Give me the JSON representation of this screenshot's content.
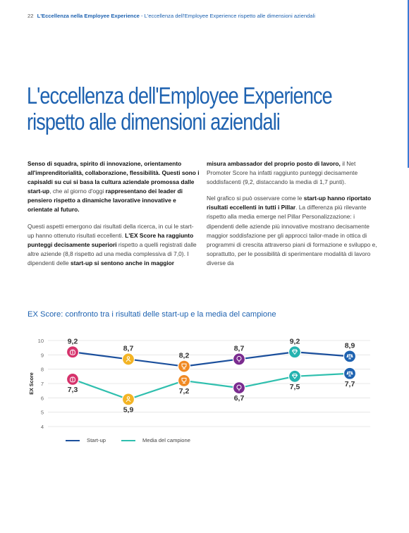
{
  "header": {
    "page_number": "22",
    "section": "L'Eccellenza nella Employee Experience",
    "separator": " - ",
    "subsection": "L'eccellenza dell'Employee Experience rispetto alle dimensioni aziendali"
  },
  "title": {
    "line1": "L'eccellenza dell'Employee Experience",
    "line2": "rispetto alle dimensioni aziendali"
  },
  "body": {
    "col1_p1_b1": "Senso di squadra, spirito di innovazione, orientamento all'imprenditorialità, collaborazione, flessibilità. Questi sono i capisaldi su cui si basa la cultura aziendale promossa dalle start-up",
    "col1_p1_t1": ", che al giorno d'oggi ",
    "col1_p1_b2": "rappresentano dei leader di pensiero rispetto a dinamiche lavorative innovative e orientate al futuro.",
    "col1_p2_t1": "Questi aspetti emergono dai risultati della ricerca, in cui le start-up hanno ottenuto risultati eccellenti. ",
    "col1_p2_b1": "L'EX Score ha raggiunto punteggi decisamente superiori",
    "col1_p2_t2": " rispetto a quelli registrati dalle altre aziende (8,8 rispetto ad una media complessiva di 7,0). I dipendenti delle ",
    "col1_p2_b2": "start-up si sentono anche in maggior",
    "col2_p1_b1": "misura ambassador del proprio posto di lavoro,",
    "col2_p1_t1": " il Net Promoter Score ha infatti raggiunto punteggi decisamente soddisfacenti (9,2, distaccando la media di 1,7 punti).",
    "col2_p2_t1": "Nel grafico si può osservare come le ",
    "col2_p2_b1": "start-up hanno riportato risultati eccellenti in tutti i Pillar",
    "col2_p2_t2": ". La differenza più rilevante rispetto alla media emerge nel Pillar Personalizzazione: i dipendenti delle aziende più innovative mostrano decisamente maggior soddisfazione per gli approcci tailor-made in ottica di programmi di crescita attraverso piani di formazione e sviluppo e, soprattutto, per le possibilità di sperimentare modalità di lavoro diverse da"
  },
  "chart_data": {
    "type": "line",
    "title": "EX Score: confronto tra i risultati delle start-up e la media del campione",
    "ylabel": "EX Score",
    "xlabel": "",
    "ylim": [
      4,
      10
    ],
    "yticks": [
      4,
      5,
      6,
      7,
      8,
      9,
      10
    ],
    "grid": true,
    "legend_position": "bottom-left",
    "series": [
      {
        "name": "Start-up",
        "color": "#1b4f9c",
        "values": [
          9.2,
          8.7,
          8.2,
          8.7,
          9.2,
          8.9
        ],
        "labels": [
          "9,2",
          "8,7",
          "8,2",
          "8,7",
          "9,2",
          "8,9"
        ],
        "icon_colors": [
          "#d6336c",
          "#f3b425",
          "#f08a24",
          "#7a2b8f",
          "#25b3b0",
          "#1e62b0"
        ]
      },
      {
        "name": "Media del campione",
        "color": "#2fbfae",
        "values": [
          7.3,
          5.9,
          7.2,
          6.7,
          7.5,
          7.7
        ],
        "labels": [
          "7,3",
          "5,9",
          "7,2",
          "6,7",
          "7,5",
          "7,7"
        ],
        "icon_colors": [
          "#d6336c",
          "#f3b425",
          "#f08a24",
          "#7a2b8f",
          "#25b3b0",
          "#1e62b0"
        ]
      }
    ],
    "icons": [
      "brain-icon",
      "person-icon",
      "trophy-icon",
      "tree-icon",
      "diamond-icon",
      "scale-icon"
    ]
  }
}
